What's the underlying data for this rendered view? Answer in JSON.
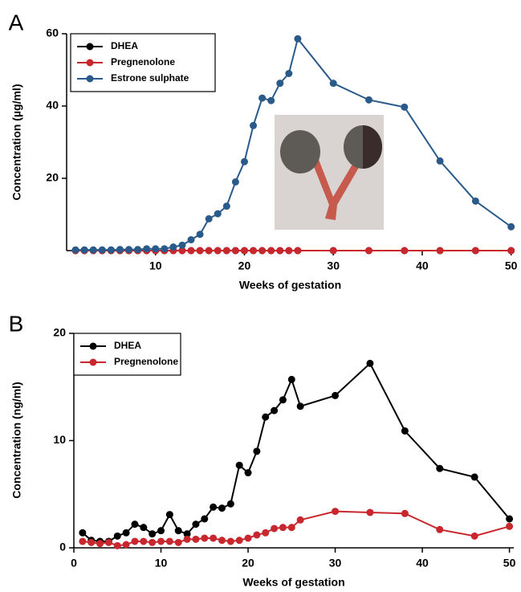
{
  "chart_data": [
    {
      "type": "line",
      "panel": "A",
      "xlabel": "Weeks of gestation",
      "ylabel": "Concentration (µg/ml)",
      "x": [
        1,
        2,
        3,
        4,
        5,
        6,
        7,
        8,
        9,
        10,
        11,
        12,
        13,
        14,
        15,
        16,
        17,
        18,
        19,
        20,
        21,
        22,
        23,
        24,
        25,
        26,
        30,
        34,
        38,
        42,
        46,
        50
      ],
      "series": [
        {
          "name": "DHEA",
          "color": "#000000",
          "values": [
            0,
            0,
            0,
            0,
            0,
            0,
            0,
            0,
            0,
            0,
            0,
            0,
            0,
            0,
            0,
            0,
            0,
            0,
            0,
            0,
            0,
            0,
            0,
            0,
            0,
            0,
            0,
            0,
            0,
            0,
            0,
            0
          ]
        },
        {
          "name": "Pregnenolone",
          "color": "#c8282d",
          "values": [
            0,
            0,
            0,
            0,
            0,
            0,
            0,
            0,
            0,
            0,
            0,
            0,
            0,
            0,
            0,
            0,
            0,
            0,
            0,
            0,
            0,
            0,
            0,
            0,
            0,
            0,
            0,
            0,
            0,
            0,
            0,
            0
          ]
        },
        {
          "name": "Estrone sulphate",
          "color": "#2a5a8a",
          "values": [
            0.2,
            0.2,
            0.2,
            0.2,
            0.2,
            0.3,
            0.3,
            0.3,
            0.5,
            0.5,
            0.5,
            1,
            1.5,
            3,
            4.5,
            8.8,
            10.2,
            12.3,
            19,
            24.6,
            34.6,
            42.2,
            41.5,
            46.3,
            49,
            58.6,
            46.3,
            41.7,
            39.7,
            24.8,
            13.7,
            6.6
          ]
        }
      ],
      "xlim": [
        0,
        50.3
      ],
      "xticks": [
        10,
        20,
        30,
        40,
        50
      ],
      "ylim": [
        0,
        60
      ],
      "yticks": [
        20,
        40,
        60
      ],
      "legend": "upper left"
    },
    {
      "type": "line",
      "panel": "B",
      "xlabel": "Weeks of gestation",
      "ylabel": "Concentration (ng/ml)",
      "x": [
        1,
        2,
        3,
        4,
        5,
        6,
        7,
        8,
        9,
        10,
        11,
        12,
        13,
        14,
        15,
        16,
        17,
        18,
        19,
        20,
        21,
        22,
        23,
        24,
        25,
        26,
        30,
        34,
        38,
        42,
        46,
        50
      ],
      "series": [
        {
          "name": "DHEA",
          "color": "#000000",
          "values": [
            1.4,
            0.7,
            0.6,
            0.6,
            1.1,
            1.4,
            2.2,
            1.9,
            1.3,
            1.6,
            3.1,
            1.6,
            1.3,
            2.2,
            2.7,
            3.8,
            3.7,
            4.1,
            7.7,
            7.0,
            9.0,
            12.2,
            12.8,
            13.8,
            15.7,
            13.2,
            14.2,
            17.2,
            10.9,
            7.4,
            6.6,
            2.7
          ]
        },
        {
          "name": "Pregnenolone",
          "color": "#c8282d",
          "values": [
            0.6,
            0.5,
            0.4,
            0.5,
            0.2,
            0.3,
            0.6,
            0.6,
            0.5,
            0.6,
            0.6,
            0.5,
            0.8,
            0.8,
            0.9,
            0.9,
            0.7,
            0.6,
            0.7,
            0.9,
            1.2,
            1.4,
            1.8,
            1.9,
            1.9,
            2.6,
            3.4,
            3.3,
            3.2,
            1.7,
            1.1,
            2.0
          ]
        }
      ],
      "xlim": [
        0,
        50.5
      ],
      "xticks": [
        0,
        10,
        20,
        30,
        40,
        50
      ],
      "ylim": [
        0,
        20
      ],
      "yticks": [
        0,
        10,
        20
      ],
      "legend": "upper left"
    }
  ]
}
